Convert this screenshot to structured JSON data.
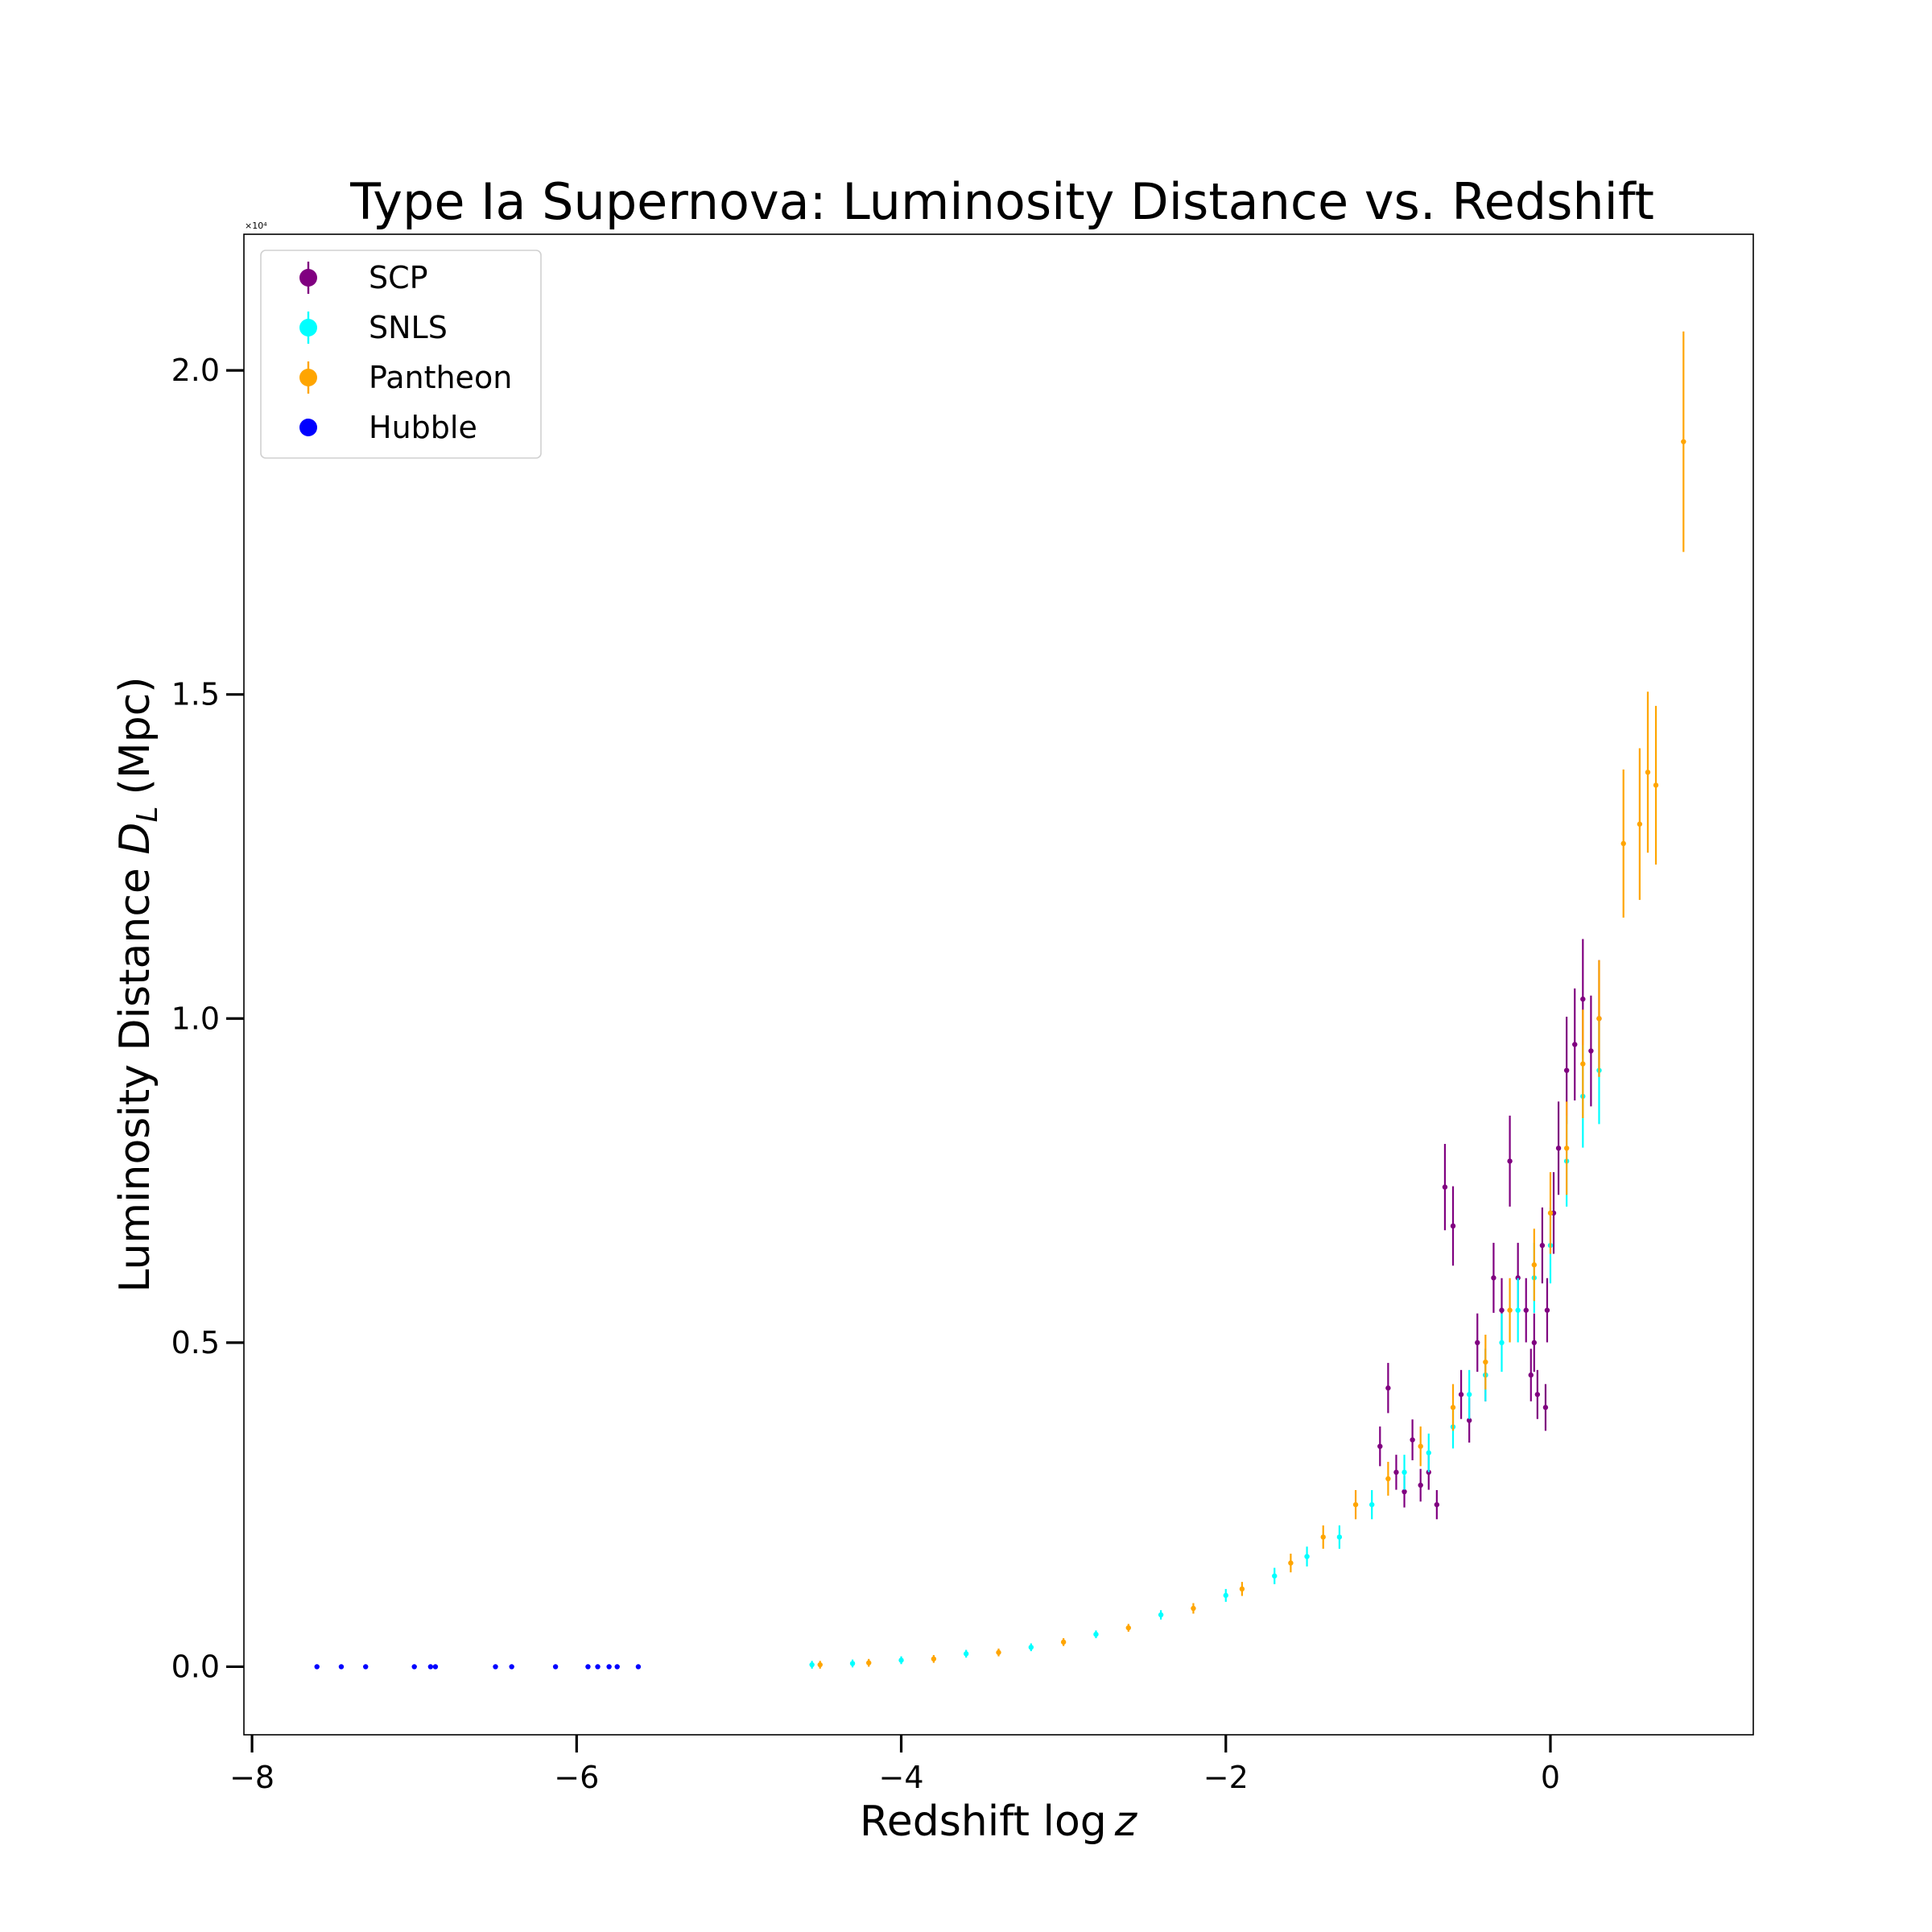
{
  "chart_data": {
    "type": "scatter",
    "title": "Type Ia Supernova: Luminosity Distance vs. Redshift",
    "xlabel_prefix": "Redshift ",
    "xlabel_func": "log",
    "xlabel_var": "z",
    "ylabel_prefix": "Luminosity Distance ",
    "ylabel_var": "D",
    "ylabel_sub": "L",
    "ylabel_unit": "(Mpc)",
    "y_offset_text": "×10⁴",
    "xlim": [
      -8.05,
      1.25
    ],
    "ylim": [
      -0.105,
      2.21
    ],
    "x_ticks": [
      -8,
      -6,
      -4,
      -2,
      0
    ],
    "x_tick_labels": [
      "−8",
      "−6",
      "−4",
      "−2",
      "0"
    ],
    "y_ticks": [
      0.0,
      0.5,
      1.0,
      1.5,
      2.0
    ],
    "y_tick_labels": [
      "0.0",
      "0.5",
      "1.0",
      "1.5",
      "2.0"
    ],
    "grid": false,
    "legend_position": "top-left",
    "series": [
      {
        "name": "SCP",
        "color": "#800080",
        "error_bars": true,
        "points": [
          [
            -1.05,
            0.34
          ],
          [
            -1.0,
            0.43
          ],
          [
            -0.95,
            0.3
          ],
          [
            -0.9,
            0.27
          ],
          [
            -0.85,
            0.35
          ],
          [
            -0.8,
            0.28
          ],
          [
            -0.75,
            0.3
          ],
          [
            -0.7,
            0.25
          ],
          [
            -0.65,
            0.74
          ],
          [
            -0.6,
            0.68
          ],
          [
            -0.55,
            0.42
          ],
          [
            -0.5,
            0.38
          ],
          [
            -0.45,
            0.5
          ],
          [
            -0.4,
            0.45
          ],
          [
            -0.35,
            0.6
          ],
          [
            -0.3,
            0.55
          ],
          [
            -0.25,
            0.78
          ],
          [
            -0.2,
            0.6
          ],
          [
            -0.15,
            0.55
          ],
          [
            -0.1,
            0.5
          ],
          [
            -0.05,
            0.65
          ],
          [
            -0.02,
            0.55
          ],
          [
            0.02,
            0.7
          ],
          [
            0.05,
            0.8
          ],
          [
            0.1,
            0.92
          ],
          [
            0.15,
            0.96
          ],
          [
            0.2,
            1.03
          ],
          [
            0.25,
            0.95
          ],
          [
            0.3,
            1.0
          ],
          [
            -0.12,
            0.45
          ],
          [
            -0.08,
            0.42
          ],
          [
            -0.03,
            0.4
          ]
        ]
      },
      {
        "name": "SNLS",
        "color": "#00ffff",
        "error_bars": true,
        "points": [
          [
            -4.55,
            0.003
          ],
          [
            -4.3,
            0.005
          ],
          [
            -4.0,
            0.01
          ],
          [
            -3.6,
            0.02
          ],
          [
            -3.2,
            0.03
          ],
          [
            -2.8,
            0.05
          ],
          [
            -2.4,
            0.08
          ],
          [
            -2.0,
            0.11
          ],
          [
            -1.7,
            0.14
          ],
          [
            -1.5,
            0.17
          ],
          [
            -1.3,
            0.2
          ],
          [
            -1.1,
            0.25
          ],
          [
            -0.9,
            0.3
          ],
          [
            -0.75,
            0.33
          ],
          [
            -0.6,
            0.37
          ],
          [
            -0.5,
            0.42
          ],
          [
            -0.4,
            0.45
          ],
          [
            -0.3,
            0.5
          ],
          [
            -0.2,
            0.55
          ],
          [
            -0.1,
            0.6
          ],
          [
            0.0,
            0.65
          ],
          [
            0.1,
            0.78
          ],
          [
            0.2,
            0.88
          ],
          [
            0.3,
            0.92
          ]
        ]
      },
      {
        "name": "Pantheon",
        "color": "#ffa500",
        "error_bars": true,
        "points": [
          [
            -4.5,
            0.003
          ],
          [
            -4.2,
            0.006
          ],
          [
            -3.8,
            0.012
          ],
          [
            -3.4,
            0.022
          ],
          [
            -3.0,
            0.038
          ],
          [
            -2.6,
            0.06
          ],
          [
            -2.2,
            0.09
          ],
          [
            -1.9,
            0.12
          ],
          [
            -1.6,
            0.16
          ],
          [
            -1.4,
            0.2
          ],
          [
            -1.2,
            0.25
          ],
          [
            -1.0,
            0.29
          ],
          [
            -0.8,
            0.34
          ],
          [
            -0.6,
            0.4
          ],
          [
            -0.4,
            0.47
          ],
          [
            -0.25,
            0.55
          ],
          [
            -0.1,
            0.62
          ],
          [
            0.0,
            0.7
          ],
          [
            0.1,
            0.8
          ],
          [
            0.2,
            0.93
          ],
          [
            0.3,
            1.0
          ],
          [
            0.45,
            1.27
          ],
          [
            0.55,
            1.3
          ],
          [
            0.6,
            1.38
          ],
          [
            0.65,
            1.36
          ],
          [
            0.82,
            1.89
          ]
        ]
      },
      {
        "name": "Hubble",
        "color": "#0000ff",
        "error_bars": false,
        "points": [
          [
            -7.6,
            0.0
          ],
          [
            -7.45,
            0.0
          ],
          [
            -7.3,
            0.0
          ],
          [
            -7.0,
            0.0
          ],
          [
            -6.9,
            0.0
          ],
          [
            -6.87,
            0.0
          ],
          [
            -6.5,
            0.0
          ],
          [
            -6.4,
            0.0
          ],
          [
            -6.13,
            0.0
          ],
          [
            -5.93,
            0.0
          ],
          [
            -5.87,
            0.0
          ],
          [
            -5.8,
            0.0
          ],
          [
            -5.75,
            0.0
          ],
          [
            -5.62,
            0.0
          ]
        ]
      }
    ]
  }
}
